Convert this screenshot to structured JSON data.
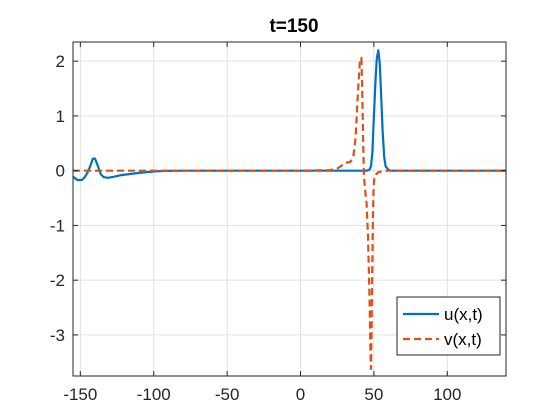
{
  "chart_data": {
    "type": "line",
    "title": "t=150",
    "xlabel": "",
    "ylabel": "",
    "xlim": [
      -155,
      140
    ],
    "ylim": [
      -3.75,
      2.35
    ],
    "grid": true,
    "legend_placement": "bottom-right",
    "x_ticks": [
      -150,
      -100,
      -50,
      0,
      50,
      100
    ],
    "x_tick_labels": [
      "-150",
      "-100",
      "-50",
      "0",
      "50",
      "100"
    ],
    "y_ticks": [
      2,
      1,
      0,
      -1,
      -2,
      -3
    ],
    "y_tick_labels": [
      "2",
      "1",
      "0",
      "-1",
      "-2",
      "-3"
    ],
    "series": [
      {
        "name": "u(x,t)",
        "color": "#0072BD",
        "style": "solid",
        "x": [
          -155,
          -152,
          -149,
          -147,
          -145,
          -143,
          -141.5,
          -140,
          -138,
          -136,
          -134,
          -131,
          -127,
          -122,
          -116,
          -110,
          -104,
          -98,
          -92,
          -86,
          -80,
          -60,
          -20,
          20,
          45,
          47,
          48,
          49,
          50,
          51,
          52,
          53,
          54,
          55,
          56,
          57,
          58,
          60,
          62,
          80,
          140
        ],
        "y": [
          -0.11,
          -0.17,
          -0.17,
          -0.12,
          -0.03,
          0.1,
          0.22,
          0.22,
          0.08,
          -0.07,
          -0.12,
          -0.13,
          -0.11,
          -0.08,
          -0.06,
          -0.04,
          -0.025,
          -0.012,
          -0.005,
          -0.002,
          0,
          0,
          0,
          0,
          0,
          0.02,
          0.08,
          0.35,
          1.0,
          1.6,
          2.05,
          2.2,
          1.95,
          1.35,
          0.7,
          0.25,
          0.08,
          0.01,
          0,
          0,
          0
        ]
      },
      {
        "name": "v(x,t)",
        "color": "#D95319",
        "style": "dashed",
        "x": [
          -155,
          -100,
          -50,
          0,
          20,
          25,
          28,
          30,
          32,
          34,
          36,
          37.5,
          38.5,
          39.5,
          40.5,
          41.5,
          42,
          42.7,
          43.2,
          44,
          45,
          46,
          47,
          47.6,
          48,
          48.4,
          48.8,
          49.3,
          49.8,
          50.4,
          51,
          52,
          53,
          55,
          57,
          60,
          80,
          140
        ],
        "y": [
          0,
          0,
          0,
          0,
          0.01,
          0.04,
          0.09,
          0.14,
          0.15,
          0.16,
          0.25,
          0.6,
          1.1,
          1.6,
          2.02,
          2.06,
          1.5,
          0.5,
          -0.1,
          -0.35,
          -0.6,
          -1.2,
          -2.3,
          -3.3,
          -3.62,
          -3.0,
          -2.0,
          -0.9,
          -0.3,
          -0.1,
          -0.08,
          -0.05,
          -0.03,
          -0.015,
          -0.005,
          0,
          0,
          0
        ]
      }
    ]
  }
}
